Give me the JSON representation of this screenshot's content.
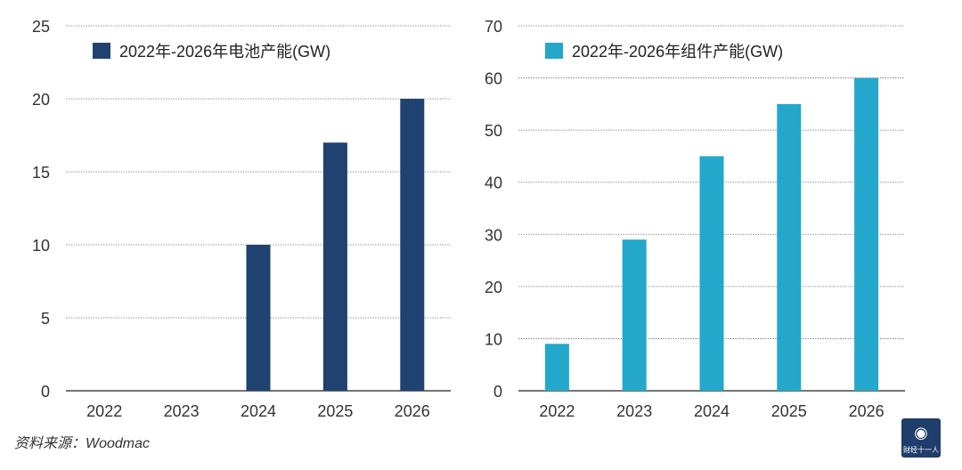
{
  "chart_data": [
    {
      "type": "bar",
      "title": "",
      "legend": "2022年-2026年电池产能(GW)",
      "legend_position": "top-left",
      "categories": [
        "2022",
        "2023",
        "2024",
        "2025",
        "2026"
      ],
      "values": [
        0,
        0,
        10,
        17,
        20
      ],
      "ylim": [
        0,
        25
      ],
      "yticks": [
        0,
        5,
        10,
        15,
        20,
        25
      ],
      "grid": true,
      "color": "#1f4270"
    },
    {
      "type": "bar",
      "title": "",
      "legend": "2022年-2026年组件产能(GW)",
      "legend_position": "top-left",
      "categories": [
        "2022",
        "2023",
        "2024",
        "2025",
        "2026"
      ],
      "values": [
        9,
        29,
        45,
        55,
        60
      ],
      "ylim": [
        0,
        70
      ],
      "yticks": [
        0,
        10,
        20,
        30,
        40,
        50,
        60,
        70
      ],
      "grid": true,
      "color": "#23a8cc"
    }
  ],
  "source_text": "资料来源：Woodmac",
  "logo": {
    "icon": "globe-icon",
    "text": "财经十一人"
  }
}
